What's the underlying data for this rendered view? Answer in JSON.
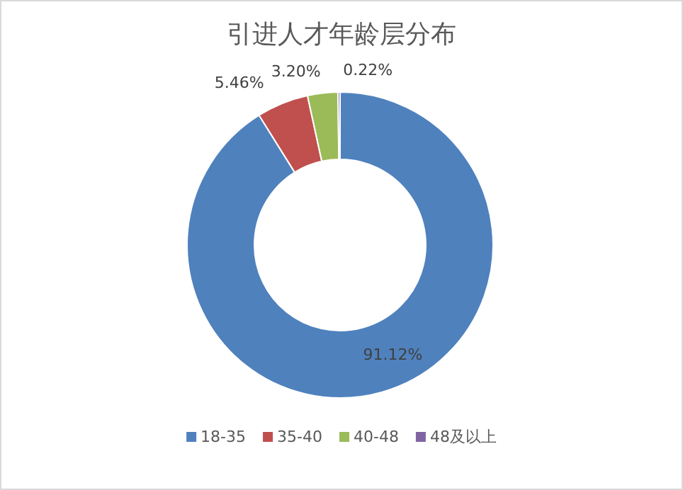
{
  "chart_data": {
    "type": "donut",
    "title": "引进人才年龄层分布",
    "categories": [
      "18-35",
      "35-40",
      "40-48",
      "48及以上"
    ],
    "values": [
      91.12,
      5.46,
      3.2,
      0.22
    ],
    "colors": [
      "#4f81bd",
      "#c0504d",
      "#9bbb59",
      "#8064a2"
    ],
    "value_labels": [
      "91.12%",
      "5.46%",
      "3.20%",
      "0.22%"
    ],
    "legend": "bottom"
  }
}
